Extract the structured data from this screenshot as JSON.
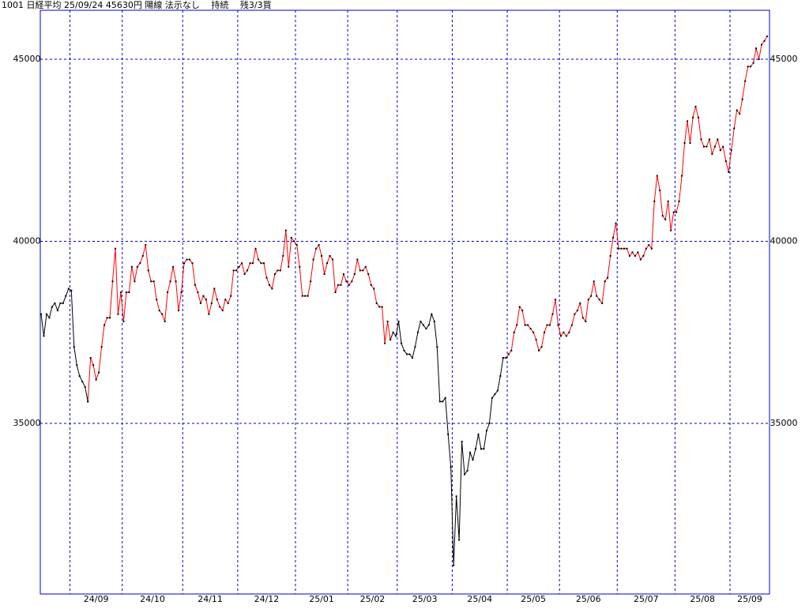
{
  "chart_data": {
    "type": "line",
    "title": "1001 日経平均 25/09/24 45630円 陽線 法示なし　 持続　 残3/3買",
    "ylim": [
      30315,
      46345
    ],
    "yticks": [
      35000,
      40000,
      45000
    ],
    "grid": true,
    "marker_color": "#000000",
    "frame_color": "#0000cc",
    "categories": [
      null,
      null,
      null,
      null,
      null,
      null,
      null,
      null,
      null,
      null,
      null,
      "24/09",
      null,
      null,
      null,
      null,
      null,
      null,
      null,
      null,
      null,
      null,
      null,
      null,
      null,
      null,
      null,
      null,
      null,
      null,
      "24/10",
      null,
      null,
      null,
      null,
      null,
      null,
      null,
      null,
      null,
      null,
      null,
      null,
      null,
      null,
      null,
      null,
      null,
      null,
      null,
      null,
      null,
      "24/11",
      null,
      null,
      null,
      null,
      null,
      null,
      null,
      null,
      null,
      null,
      null,
      null,
      null,
      null,
      null,
      null,
      null,
      null,
      null,
      "24/12",
      null,
      null,
      null,
      null,
      null,
      null,
      null,
      null,
      null,
      null,
      null,
      null,
      null,
      null,
      null,
      null,
      null,
      null,
      null,
      null,
      "25/01",
      null,
      null,
      null,
      null,
      null,
      null,
      null,
      null,
      null,
      null,
      null,
      null,
      null,
      null,
      null,
      null,
      null,
      null,
      "25/02",
      null,
      null,
      null,
      null,
      null,
      null,
      null,
      null,
      null,
      null,
      null,
      null,
      null,
      null,
      null,
      null,
      null,
      "25/03",
      null,
      null,
      null,
      null,
      null,
      null,
      null,
      null,
      null,
      null,
      null,
      null,
      null,
      null,
      null,
      null,
      null,
      null,
      null,
      "25/04",
      null,
      null,
      null,
      null,
      null,
      null,
      null,
      null,
      null,
      null,
      null,
      null,
      null,
      null,
      null,
      null,
      null,
      null,
      null,
      "25/05",
      null,
      null,
      null,
      null,
      null,
      null,
      null,
      null,
      null,
      null,
      null,
      null,
      null,
      null,
      null,
      null,
      null,
      null,
      "25/06",
      null,
      null,
      null,
      null,
      null,
      null,
      null,
      null,
      null,
      null,
      null,
      null,
      null,
      null,
      null,
      null,
      null,
      null,
      null,
      null,
      "25/07",
      null,
      null,
      null,
      null,
      null,
      null,
      null,
      null,
      null,
      null,
      null,
      null,
      null,
      null,
      null,
      null,
      null,
      null,
      null,
      null,
      "25/08",
      null,
      null,
      null,
      null,
      null,
      null,
      null,
      null,
      null,
      null,
      null,
      null,
      null,
      null,
      null,
      null,
      null,
      null,
      null,
      "25/09",
      null,
      null,
      null,
      null,
      null,
      null,
      null,
      null,
      null,
      null,
      null,
      null,
      null
    ],
    "series": [
      {
        "color": "#000000",
        "values": [
          38000,
          37400,
          38000,
          37900,
          38200,
          38300,
          38100,
          38300,
          38300,
          38500,
          38700,
          38650,
          37100,
          36600,
          36300,
          36150,
          36000,
          35600,
          null,
          null,
          null,
          null,
          null,
          null,
          null,
          null,
          null,
          null,
          null,
          null,
          null,
          null,
          null,
          null,
          null,
          null,
          null,
          null,
          null,
          null,
          null,
          null,
          null,
          null,
          null,
          null,
          null,
          null,
          null,
          null,
          null,
          null,
          null,
          null,
          null,
          null,
          null,
          null,
          null,
          null,
          null,
          null,
          null,
          null,
          null,
          null,
          null,
          null,
          null,
          null,
          null,
          null,
          null,
          null,
          null,
          null,
          null,
          null,
          null,
          null,
          null,
          null,
          null,
          null,
          null,
          null,
          null,
          null,
          null,
          null,
          null,
          null,
          null,
          null,
          null,
          null,
          null,
          null,
          null,
          null,
          null,
          null,
          null,
          null,
          null,
          null,
          null,
          null,
          null,
          null,
          null,
          null,
          null,
          null,
          null,
          null,
          null,
          null,
          null,
          null,
          null,
          null,
          null,
          null,
          null,
          null,
          null,
          37300,
          37500,
          37400,
          37800,
          37200,
          37000,
          36900,
          36900,
          36800,
          37100,
          37500,
          37800,
          37700,
          37600,
          37700,
          38000,
          37800,
          37100,
          35600,
          35600,
          35700,
          34700,
          33800,
          31100,
          33000,
          31800,
          34500,
          33600,
          33700,
          34200,
          34000,
          34300,
          34700,
          34300,
          34300,
          34800,
          35000,
          35700,
          35800,
          35900,
          36300,
          36800,
          null,
          null,
          null,
          null,
          null,
          null,
          null,
          null,
          null,
          null,
          null,
          null,
          null,
          null,
          null,
          null,
          null,
          null,
          null,
          null,
          null,
          null,
          null,
          null,
          null,
          null,
          null,
          null,
          null,
          null,
          null,
          null,
          null,
          null,
          null,
          null,
          null,
          null,
          null,
          null,
          null,
          null,
          null,
          null,
          null,
          null,
          null,
          null,
          null,
          null,
          null,
          null,
          null,
          null,
          null,
          null,
          null,
          null,
          null,
          null,
          null,
          null,
          null,
          null,
          null,
          null,
          null,
          null,
          null,
          null,
          null,
          null,
          null,
          null,
          null,
          null,
          null,
          null,
          null,
          null,
          null,
          null,
          null,
          null,
          null,
          null,
          null,
          null,
          null,
          null,
          null,
          null,
          null,
          null,
          null,
          null
        ]
      },
      {
        "color": "#ff0000",
        "values": [
          null,
          null,
          null,
          null,
          null,
          null,
          null,
          null,
          null,
          null,
          null,
          null,
          null,
          null,
          null,
          null,
          null,
          35600,
          36800,
          36600,
          36200,
          36400,
          37100,
          37700,
          37900,
          37900,
          38900,
          39800,
          38000,
          38600,
          37800,
          38600,
          38600,
          39300,
          38900,
          39300,
          39400,
          39600,
          39900,
          39200,
          38900,
          38900,
          38400,
          38100,
          38000,
          37800,
          38600,
          38900,
          39300,
          38900,
          38100,
          38600,
          39400,
          39500,
          39500,
          39400,
          38800,
          38600,
          38300,
          38500,
          38400,
          38000,
          38300,
          38700,
          38400,
          38200,
          38100,
          38400,
          38300,
          38500,
          39200,
          39200,
          39300,
          39400,
          39100,
          39200,
          39400,
          39400,
          39800,
          39500,
          39400,
          39400,
          39000,
          38800,
          38700,
          39100,
          39200,
          39200,
          39600,
          40300,
          39300,
          40100,
          40000,
          39900,
          39300,
          38500,
          38500,
          38500,
          38900,
          39500,
          39800,
          39900,
          39600,
          39100,
          39400,
          39600,
          39500,
          38600,
          38800,
          38800,
          39100,
          38900,
          38800,
          38900,
          39100,
          39500,
          39200,
          39200,
          39300,
          39100,
          38800,
          38700,
          38300,
          38200,
          38200,
          37200,
          37800,
          37300,
          null,
          null,
          null,
          null,
          null,
          null,
          null,
          null,
          null,
          null,
          null,
          null,
          null,
          null,
          null,
          null,
          null,
          null,
          null,
          null,
          null,
          null,
          null,
          null,
          null,
          null,
          null,
          null,
          null,
          null,
          null,
          null,
          null,
          null,
          null,
          null,
          null,
          null,
          null,
          null,
          36800,
          36800,
          36900,
          37000,
          37500,
          37700,
          38200,
          38100,
          37700,
          37700,
          37600,
          37500,
          37300,
          37000,
          37100,
          37500,
          37700,
          37700,
          38000,
          38400,
          37700,
          37400,
          37500,
          37400,
          37500,
          37700,
          38000,
          38100,
          38300,
          37900,
          37800,
          38400,
          38500,
          38900,
          38500,
          38400,
          38300,
          38900,
          39000,
          39600,
          40100,
          40500,
          39800,
          39800,
          39800,
          39800,
          39600,
          39700,
          39600,
          39700,
          39500,
          39600,
          39800,
          39900,
          39800,
          41100,
          41800,
          41400,
          40700,
          40600,
          41100,
          40300,
          40800,
          40800,
          41100,
          41800,
          42700,
          43300,
          42700,
          43400,
          43700,
          43400,
          42800,
          42600,
          42600,
          42800,
          42400,
          42600,
          42800,
          42500,
          42600,
          42200,
          41900,
          42500,
          43100,
          43600,
          43500,
          43900,
          44400,
          44800,
          44800,
          44900,
          45300,
          45000,
          45400,
          45500,
          45630
        ]
      }
    ]
  }
}
